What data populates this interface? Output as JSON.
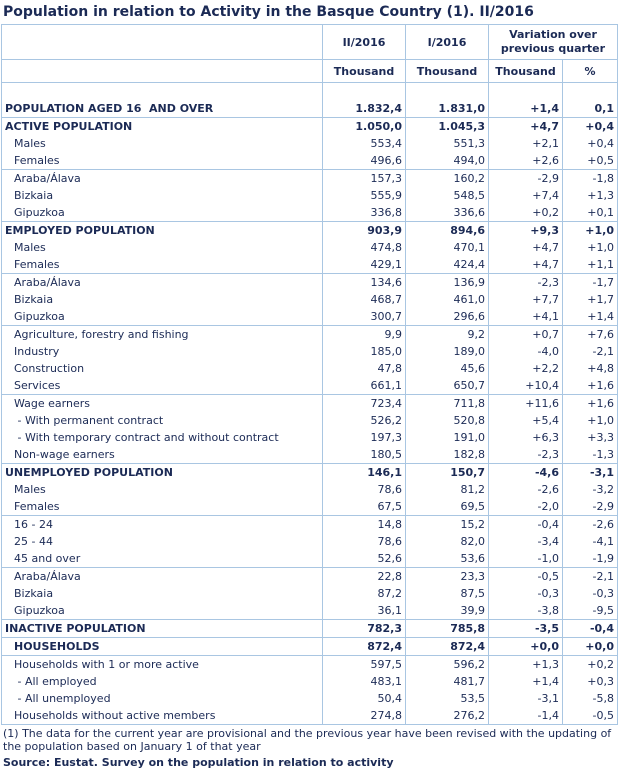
{
  "title": "Population in relation to Activity in the Basque Country (1). II/2016",
  "header": {
    "period_current": "II/2016",
    "period_previous": "I/2016",
    "variation": "Variation over previous quarter",
    "units": [
      "Thousand",
      "Thousand",
      "Thousand",
      "%"
    ]
  },
  "rows": [
    [
      "POPULATION AGED 16  AND OVER",
      "1.832,4",
      "1.831,0",
      "+1,4",
      "0,1"
    ],
    [
      "ACTIVE POPULATION",
      "1.050,0",
      "1.045,3",
      "+4,7",
      "+0,4"
    ],
    [
      "Males",
      "553,4",
      "551,3",
      "+2,1",
      "+0,4"
    ],
    [
      "Females",
      "496,6",
      "494,0",
      "+2,6",
      "+0,5"
    ],
    [
      "Araba/Álava",
      "157,3",
      "160,2",
      "-2,9",
      "-1,8"
    ],
    [
      "Bizkaia",
      "555,9",
      "548,5",
      "+7,4",
      "+1,3"
    ],
    [
      "Gipuzkoa",
      "336,8",
      "336,6",
      "+0,2",
      "+0,1"
    ],
    [
      "EMPLOYED POPULATION",
      "903,9",
      "894,6",
      "+9,3",
      "+1,0"
    ],
    [
      "Males",
      "474,8",
      "470,1",
      "+4,7",
      "+1,0"
    ],
    [
      "Females",
      "429,1",
      "424,4",
      "+4,7",
      "+1,1"
    ],
    [
      "Araba/Álava",
      "134,6",
      "136,9",
      "-2,3",
      "-1,7"
    ],
    [
      "Bizkaia",
      "468,7",
      "461,0",
      "+7,7",
      "+1,7"
    ],
    [
      "Gipuzkoa",
      "300,7",
      "296,6",
      "+4,1",
      "+1,4"
    ],
    [
      "Agriculture, forestry and fishing",
      "9,9",
      "9,2",
      "+0,7",
      "+7,6"
    ],
    [
      "Industry",
      "185,0",
      "189,0",
      "-4,0",
      "-2,1"
    ],
    [
      "Construction",
      "47,8",
      "45,6",
      "+2,2",
      "+4,8"
    ],
    [
      "Services",
      "661,1",
      "650,7",
      "+10,4",
      "+1,6"
    ],
    [
      "Wage earners",
      "723,4",
      "711,8",
      "+11,6",
      "+1,6"
    ],
    [
      " - With permanent contract",
      "526,2",
      "520,8",
      "+5,4",
      "+1,0"
    ],
    [
      " - With temporary contract and without contract",
      "197,3",
      "191,0",
      "+6,3",
      "+3,3"
    ],
    [
      "Non-wage earners",
      "180,5",
      "182,8",
      "-2,3",
      "-1,3"
    ],
    [
      "UNEMPLOYED POPULATION",
      "146,1",
      "150,7",
      "-4,6",
      "-3,1"
    ],
    [
      "Males",
      "78,6",
      "81,2",
      "-2,6",
      "-3,2"
    ],
    [
      "Females",
      "67,5",
      "69,5",
      "-2,0",
      "-2,9"
    ],
    [
      "16 - 24",
      "14,8",
      "15,2",
      "-0,4",
      "-2,6"
    ],
    [
      "25 - 44",
      "78,6",
      "82,0",
      "-3,4",
      "-4,1"
    ],
    [
      "45 and over",
      "52,6",
      "53,6",
      "-1,0",
      "-1,9"
    ],
    [
      "Araba/Álava",
      "22,8",
      "23,3",
      "-0,5",
      "-2,1"
    ],
    [
      "Bizkaia",
      "87,2",
      "87,5",
      "-0,3",
      "-0,3"
    ],
    [
      "Gipuzkoa",
      "36,1",
      "39,9",
      "-3,8",
      "-9,5"
    ],
    [
      "INACTIVE POPULATION",
      "782,3",
      "785,8",
      "-3,5",
      "-0,4"
    ],
    [
      "HOUSEHOLDS",
      "872,4",
      "872,4",
      "+0,0",
      "+0,0"
    ],
    [
      "Households with 1 or more active",
      "597,5",
      "596,2",
      "+1,3",
      "+0,2"
    ],
    [
      " - All employed",
      "483,1",
      "481,7",
      "+1,4",
      "+0,3"
    ],
    [
      " - All unemployed",
      "50,4",
      "53,5",
      "-3,1",
      "-5,8"
    ],
    [
      "Households without active members",
      "274,8",
      "276,2",
      "-1,4",
      "-0,5"
    ]
  ],
  "footnote": "(1) The data for the current year are provisional and the previous year have been revised with the updating of the population based on January 1 of that year",
  "source": "Source: Eustat. Survey on the population in relation to activity"
}
